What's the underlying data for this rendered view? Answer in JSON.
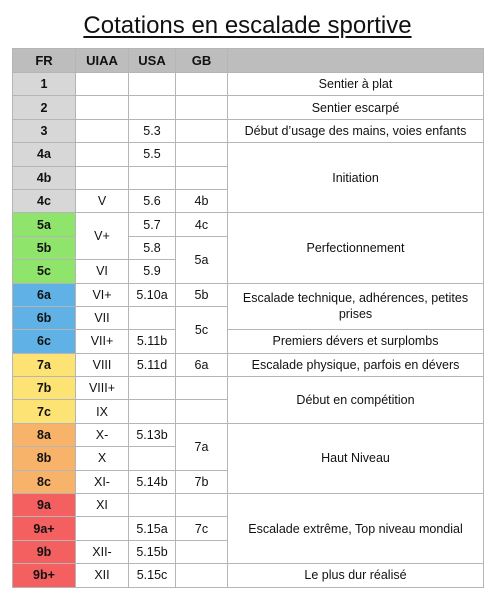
{
  "title": "Cotations en escalade sportive",
  "headers": [
    "FR",
    "UIAA",
    "USA",
    "GB",
    ""
  ],
  "colors": {
    "gray": "#d7d7d7",
    "green": "#8fe46b",
    "blue": "#5fb1e6",
    "yellow": "#fde274",
    "orange": "#f8b36b",
    "red": "#f45f5f"
  },
  "grades": {
    "fr": [
      "1",
      "2",
      "3",
      "4a",
      "4b",
      "4c",
      "5a",
      "5b",
      "5c",
      "6a",
      "6b",
      "6c",
      "7a",
      "7b",
      "7c",
      "8a",
      "8b",
      "8c",
      "9a",
      "9a+",
      "9b",
      "9b+"
    ],
    "uiaa": {
      "v": "V",
      "vplus": "V+",
      "vi": "VI",
      "viplus": "VI+",
      "vii": "VII",
      "viiplus": "VII+",
      "viii": "VIII",
      "viiiplus": "VIII+",
      "ix": "IX",
      "xminus": "X-",
      "x": "X",
      "xi": "XI-",
      "xi2": "XI",
      "xiiminus": "XII-",
      "xii": "XII"
    },
    "usa": {
      "u53": "5.3",
      "u55": "5.5",
      "u56": "5.6",
      "u57": "5.7",
      "u58": "5.8",
      "u59": "5.9",
      "u510a": "5.10a",
      "u511b": "5.11b",
      "u511d": "5.11d",
      "u513b": "5.13b",
      "u514b": "5.14b",
      "u515a": "5.15a",
      "u515b": "5.15b",
      "u515c": "5.15c"
    },
    "gb": {
      "g4b": "4b",
      "g4c": "4c",
      "g5a": "5a",
      "g5b": "5b",
      "g5c": "5c",
      "g6a": "6a",
      "g7a": "7a",
      "g7b": "7b",
      "g7c": "7c"
    }
  },
  "descriptions": {
    "d1": "Sentier à plat",
    "d2": "Sentier escarpé",
    "d3": "Début d’usage des mains, voies enfants",
    "d4": "Initiation",
    "d5": "Perfectionnement",
    "d6": "Escalade technique, adhérences, petites prises",
    "d7": "Premiers dévers et surplombs",
    "d8": "Escalade physique, parfois en dévers",
    "d9": "Début en compétition",
    "d10": "Haut Niveau",
    "d11": "Escalade extrême, Top niveau mondial",
    "d12": "Le plus dur réalisé"
  }
}
